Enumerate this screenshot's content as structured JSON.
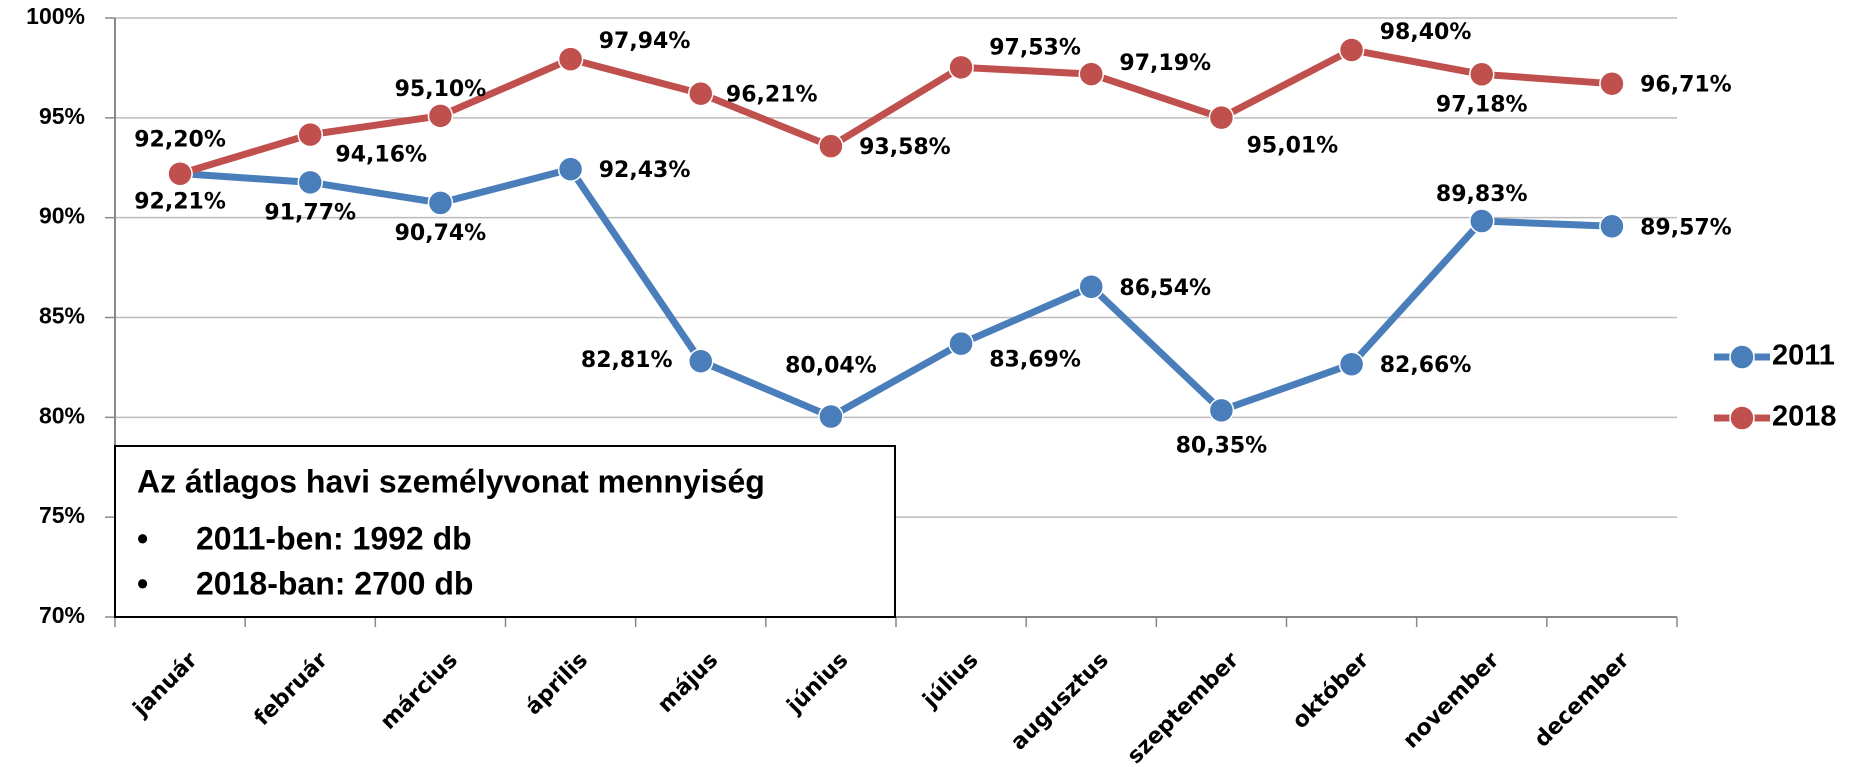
{
  "chart_data": {
    "type": "line",
    "categories": [
      "január",
      "február",
      "március",
      "április",
      "május",
      "június",
      "július",
      "augusztus",
      "szeptember",
      "október",
      "november",
      "december"
    ],
    "series": [
      {
        "name": "2011",
        "color": "#4a7ebb",
        "values": [
          92.21,
          91.77,
          90.74,
          92.43,
          82.81,
          80.04,
          83.69,
          86.54,
          80.35,
          82.66,
          89.83,
          89.57
        ],
        "value_labels": [
          "92,21%",
          "91,77%",
          "90,74%",
          "92,43%",
          "82,81%",
          "80,04%",
          "83,69%",
          "86,54%",
          "80,35%",
          "82,66%",
          "89,83%",
          "89,57%"
        ]
      },
      {
        "name": "2018",
        "color": "#c0504d",
        "values": [
          92.2,
          94.16,
          95.1,
          97.94,
          96.21,
          93.58,
          97.53,
          97.19,
          95.01,
          98.4,
          97.18,
          96.71
        ],
        "value_labels": [
          "92,20%",
          "94,16%",
          "95,10%",
          "97,94%",
          "96,21%",
          "93,58%",
          "97,53%",
          "97,19%",
          "95,01%",
          "98,40%",
          "97,18%",
          "96,71%"
        ]
      }
    ],
    "ylim": [
      70,
      100
    ],
    "yticks": [
      {
        "value": 70,
        "label": "70%"
      },
      {
        "value": 75,
        "label": "75%"
      },
      {
        "value": 80,
        "label": "80%"
      },
      {
        "value": 85,
        "label": "85%"
      },
      {
        "value": 90,
        "label": "90%"
      },
      {
        "value": 95,
        "label": "95%"
      },
      {
        "value": 100,
        "label": "100%"
      }
    ],
    "grid": true,
    "legend": "right",
    "annotation": {
      "title": "Az átlagos havi személyvonat mennyiség",
      "items": [
        "2011-ben: 1992 db",
        "2018-ban: 2700 db"
      ]
    }
  }
}
